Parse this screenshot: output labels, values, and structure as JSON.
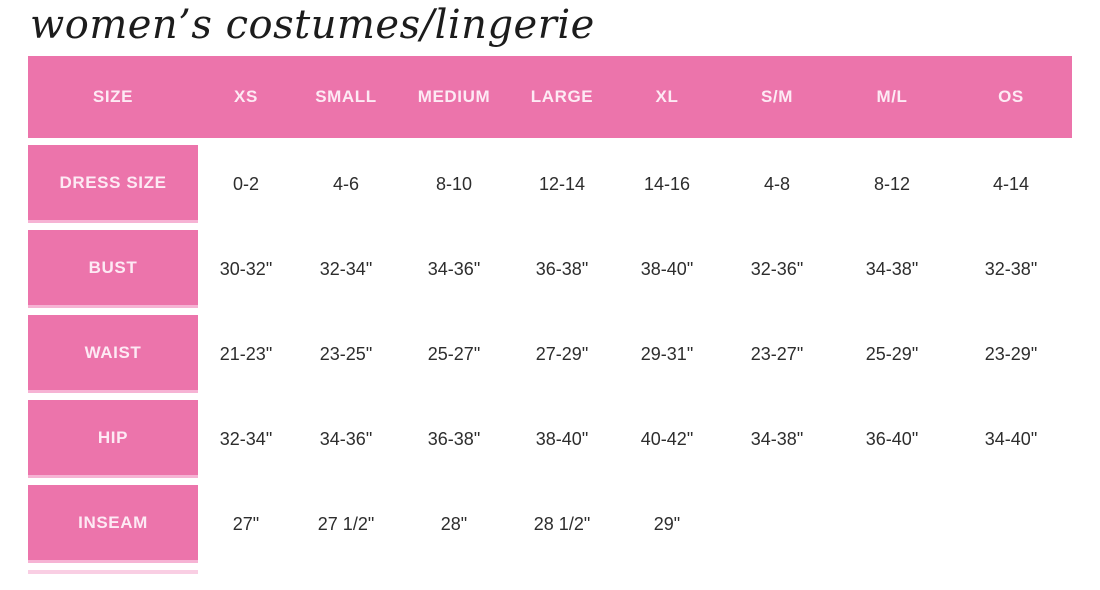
{
  "title": "women’s costumes/lingerie",
  "colors": {
    "pink": "#ec74ab",
    "pink_light": "#f6b3d4",
    "pink_faint": "#f9cee3",
    "header_text": "#fdeaf4",
    "cell_text": "#2d2d2d"
  },
  "chart_data": {
    "type": "table",
    "title": "women’s costumes/lingerie",
    "headers": [
      "SIZE",
      "XS",
      "SMALL",
      "MEDIUM",
      "LARGE",
      "XL",
      "S/M",
      "M/L",
      "OS"
    ],
    "rows": [
      {
        "label": "DRESS SIZE",
        "values": [
          "0-2",
          "4-6",
          "8-10",
          "12-14",
          "14-16",
          "4-8",
          "8-12",
          "4-14"
        ]
      },
      {
        "label": "BUST",
        "values": [
          "30-32\"",
          "32-34\"",
          "34-36\"",
          "36-38\"",
          "38-40\"",
          "32-36\"",
          "34-38\"",
          "32-38\""
        ]
      },
      {
        "label": "WAIST",
        "values": [
          "21-23\"",
          "23-25\"",
          "25-27\"",
          "27-29\"",
          "29-31\"",
          "23-27\"",
          "25-29\"",
          "23-29\""
        ]
      },
      {
        "label": "HIP",
        "values": [
          "32-34\"",
          "34-36\"",
          "36-38\"",
          "38-40\"",
          "40-42\"",
          "34-38\"",
          "36-40\"",
          "34-40\""
        ]
      },
      {
        "label": "INSEAM",
        "values": [
          "27\"",
          "27 1/2\"",
          "28\"",
          "28 1/2\"",
          "29\"",
          "",
          "",
          ""
        ]
      }
    ]
  }
}
